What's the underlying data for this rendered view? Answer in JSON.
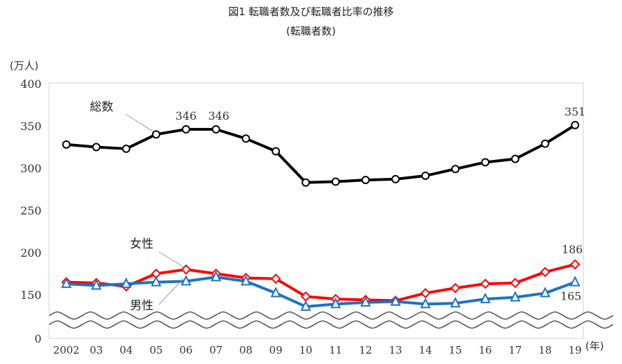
{
  "chart_data": {
    "type": "line",
    "title": "図1 転職者数及び転職者比率の推移",
    "subtitle": "(転職者数)",
    "ylabel": "(万人)",
    "xlabel": "(年)",
    "ylim": [
      0,
      400
    ],
    "axis_break": [
      0,
      125
    ],
    "yticks": [
      0,
      150,
      200,
      250,
      300,
      350,
      400
    ],
    "categories": [
      "2002",
      "03",
      "04",
      "05",
      "06",
      "07",
      "08",
      "09",
      "10",
      "11",
      "12",
      "13",
      "14",
      "15",
      "16",
      "17",
      "18",
      "19"
    ],
    "grid": false,
    "series": [
      {
        "name": "総数",
        "color": "#000000",
        "marker": "circle",
        "values": [
          328,
          325,
          323,
          340,
          346,
          346,
          335,
          320,
          283,
          284,
          286,
          287,
          291,
          299,
          307,
          311,
          329,
          351
        ],
        "labeled": {
          "4": "346",
          "5": "346",
          "17": "351"
        }
      },
      {
        "name": "女性",
        "color": "#ff0000",
        "marker": "diamond",
        "values": [
          165,
          164,
          160,
          175,
          180,
          175,
          170,
          169,
          148,
          145,
          144,
          143,
          152,
          158,
          163,
          164,
          177,
          186
        ],
        "labeled": {
          "17": "186"
        }
      },
      {
        "name": "男性",
        "color": "#1a73c7",
        "marker": "triangle",
        "values": [
          163,
          161,
          163,
          165,
          166,
          171,
          166,
          152,
          136,
          139,
          141,
          142,
          139,
          140,
          145,
          147,
          152,
          165
        ],
        "labeled": {
          "17": "165"
        }
      }
    ]
  }
}
